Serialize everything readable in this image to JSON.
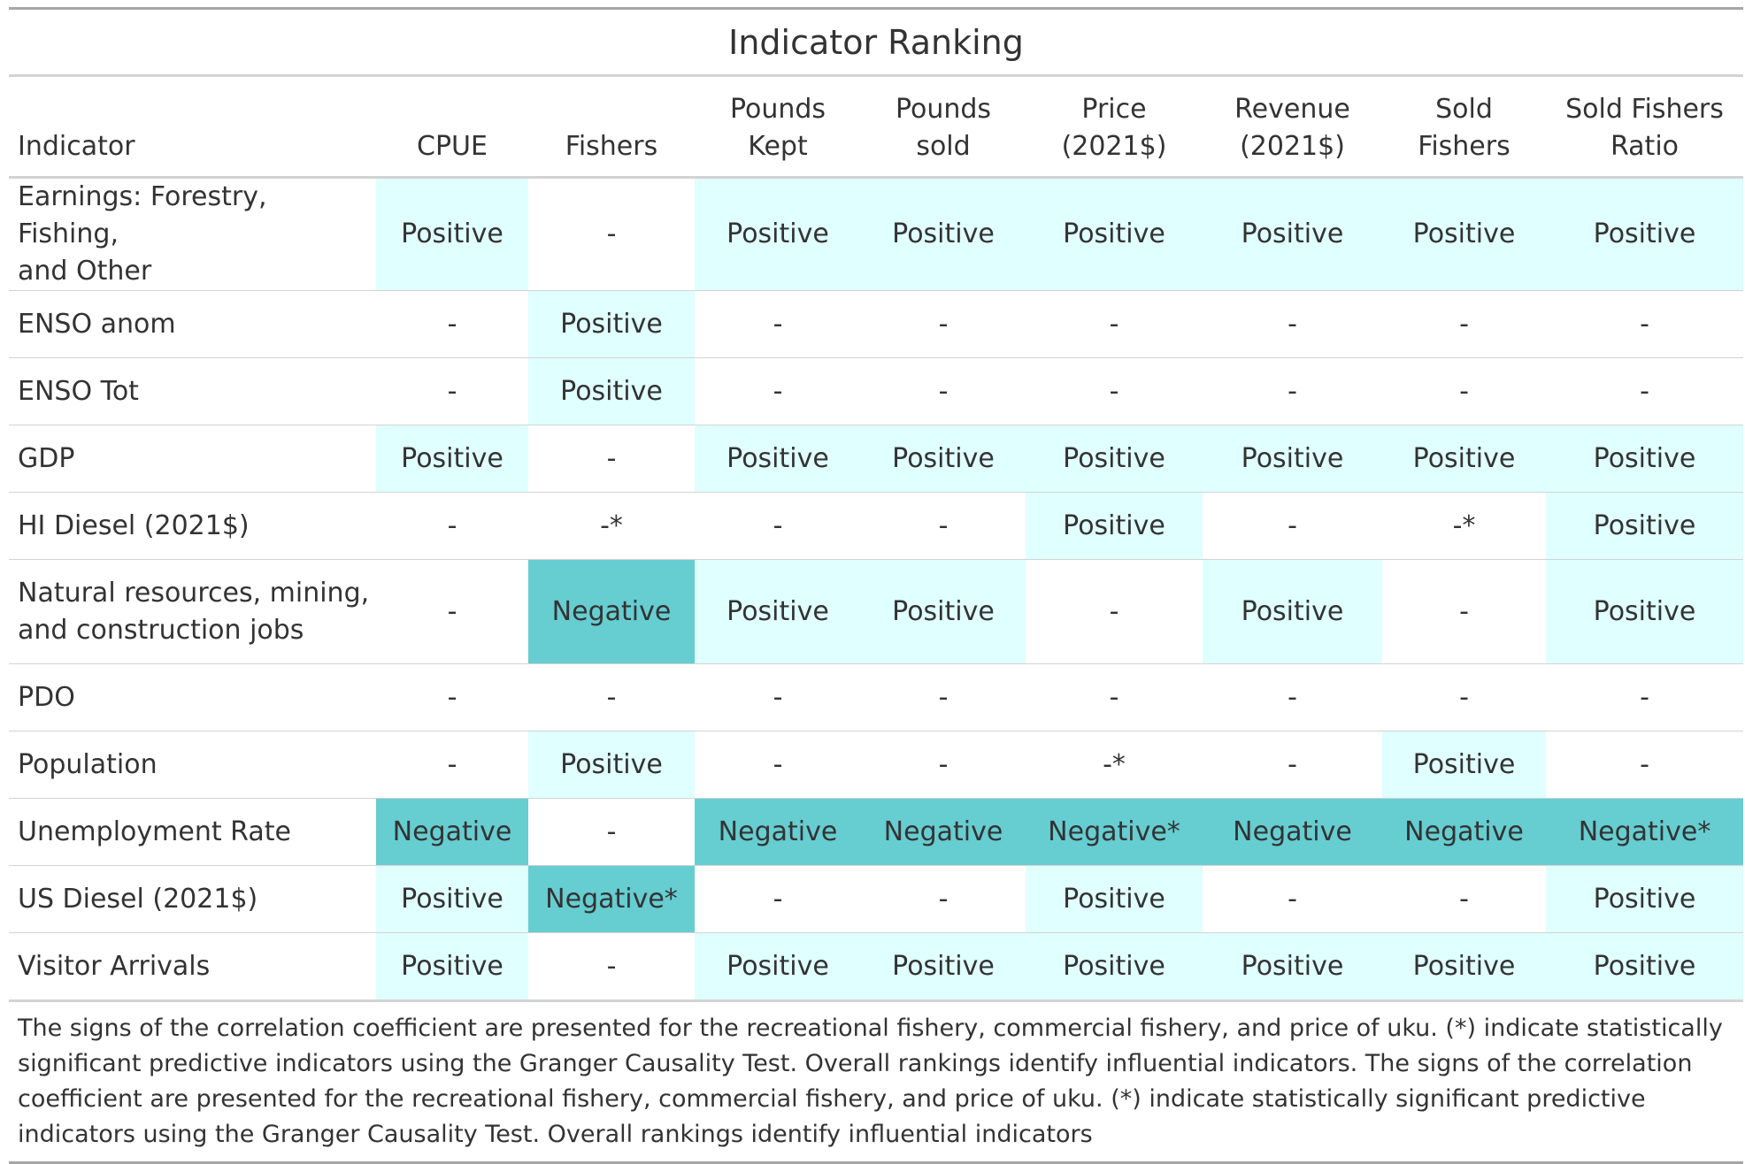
{
  "title": "Indicator Ranking",
  "headers": [
    [
      "Indicator"
    ],
    [
      "CPUE"
    ],
    [
      "Fishers"
    ],
    [
      "Pounds",
      "Kept"
    ],
    [
      "Pounds",
      "sold"
    ],
    [
      "Price",
      "(2021$)"
    ],
    [
      "Revenue",
      "(2021$)"
    ],
    [
      "Sold",
      "Fishers"
    ],
    [
      "Sold Fishers",
      "Ratio"
    ]
  ],
  "rows": [
    {
      "indicator": [
        "Earnings: Forestry, Fishing,",
        "and Other"
      ],
      "values": [
        "Positive",
        "-",
        "Positive",
        "Positive",
        "Positive",
        "Positive",
        "Positive",
        "Positive"
      ]
    },
    {
      "indicator": [
        "ENSO anom"
      ],
      "values": [
        "-",
        "Positive",
        "-",
        "-",
        "-",
        "-",
        "-",
        "-"
      ]
    },
    {
      "indicator": [
        "ENSO Tot"
      ],
      "values": [
        "-",
        "Positive",
        "-",
        "-",
        "-",
        "-",
        "-",
        "-"
      ]
    },
    {
      "indicator": [
        "GDP"
      ],
      "values": [
        "Positive",
        "-",
        "Positive",
        "Positive",
        "Positive",
        "Positive",
        "Positive",
        "Positive"
      ]
    },
    {
      "indicator": [
        "HI Diesel (2021$)"
      ],
      "values": [
        "-",
        "-*",
        "-",
        "-",
        "Positive",
        "-",
        "-*",
        "Positive"
      ]
    },
    {
      "indicator": [
        "Natural resources, mining,",
        "and construction jobs"
      ],
      "values": [
        "-",
        "Negative",
        "Positive",
        "Positive",
        "-",
        "Positive",
        "-",
        "Positive"
      ]
    },
    {
      "indicator": [
        "PDO"
      ],
      "values": [
        "-",
        "-",
        "-",
        "-",
        "-",
        "-",
        "-",
        "-"
      ]
    },
    {
      "indicator": [
        "Population"
      ],
      "values": [
        "-",
        "Positive",
        "-",
        "-",
        "-*",
        "-",
        "Positive",
        "-"
      ]
    },
    {
      "indicator": [
        "Unemployment Rate"
      ],
      "values": [
        "Negative",
        "-",
        "Negative",
        "Negative",
        "Negative*",
        "Negative",
        "Negative",
        "Negative*"
      ]
    },
    {
      "indicator": [
        "US Diesel (2021$)"
      ],
      "values": [
        "Positive",
        "Negative*",
        "-",
        "-",
        "Positive",
        "-",
        "-",
        "Positive"
      ]
    },
    {
      "indicator": [
        "Visitor Arrivals"
      ],
      "values": [
        "Positive",
        "-",
        "Positive",
        "Positive",
        "Positive",
        "Positive",
        "Positive",
        "Positive"
      ]
    }
  ],
  "footnote": "The signs of the correlation coefficient are presented for the recreational fishery, commercial fishery, and price of uku. (*) indicate statistically significant predictive indicators using the Granger Causality Test. Overall rankings identify influential indicators. The signs of the correlation coefficient are presented for the recreational fishery, commercial fishery, and price of uku. (*) indicate statistically significant predictive indicators using the Granger Causality Test. Overall rankings identify influential indicators",
  "colors": {
    "positive_fill": "#e0ffff",
    "negative_fill": "#66cdd1",
    "none_fill": "#ffffff",
    "text": "#333333"
  }
}
